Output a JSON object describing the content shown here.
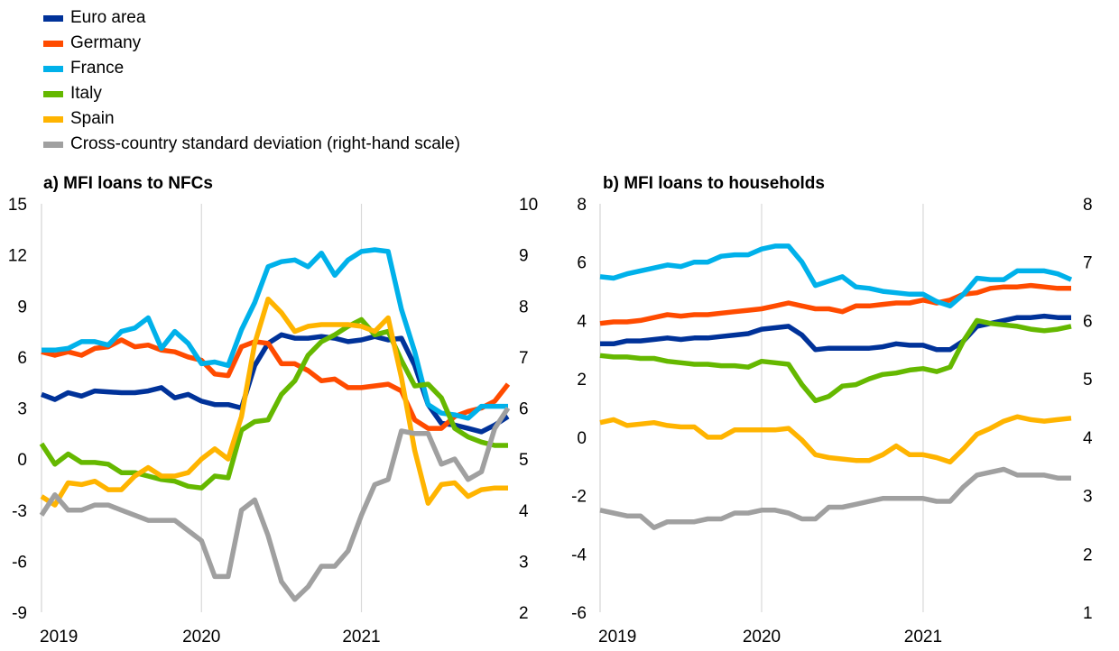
{
  "legend": [
    {
      "label": "Euro area",
      "color": "#003299"
    },
    {
      "label": "Germany",
      "color": "#FF4B00"
    },
    {
      "label": "France",
      "color": "#00B1EA"
    },
    {
      "label": "Italy",
      "color": "#65B800"
    },
    {
      "label": "Spain",
      "color": "#FFB400"
    },
    {
      "label": "Cross-country standard deviation (right-hand scale)",
      "color": "#A0A0A0"
    }
  ],
  "chart_data": [
    {
      "type": "line",
      "title": "a) MFI loans to NFCs",
      "x_start": "2019-01",
      "x_ticks": [
        "2019",
        "2020",
        "2021"
      ],
      "ylim": [
        -9,
        15
      ],
      "y_ticks": [
        15,
        12,
        9,
        6,
        3,
        0,
        -3,
        -6,
        -9
      ],
      "y2lim": [
        2,
        10
      ],
      "y2_ticks": [
        10,
        9,
        8,
        7,
        6,
        5,
        4,
        3,
        2
      ],
      "grid": "vertical",
      "series": [
        {
          "name": "Euro area",
          "color": "#003299",
          "axis": "left",
          "values": [
            3.8,
            3.5,
            3.9,
            3.7,
            4.0,
            3.95,
            3.9,
            3.9,
            4.0,
            4.2,
            3.6,
            3.8,
            3.4,
            3.2,
            3.2,
            3.0,
            5.5,
            6.8,
            7.3,
            7.1,
            7.1,
            7.2,
            7.1,
            6.9,
            7.0,
            7.2,
            7.0,
            7.1,
            5.5,
            3.2,
            2.1,
            2.0,
            1.8,
            1.6,
            2.0,
            2.5
          ]
        },
        {
          "name": "Germany",
          "color": "#FF4B00",
          "axis": "left",
          "values": [
            6.3,
            6.1,
            6.3,
            6.1,
            6.5,
            6.6,
            7.0,
            6.6,
            6.7,
            6.4,
            6.3,
            6.0,
            5.8,
            5.0,
            4.9,
            6.6,
            6.9,
            6.8,
            5.6,
            5.6,
            5.2,
            4.6,
            4.7,
            4.2,
            4.2,
            4.3,
            4.4,
            4.0,
            2.3,
            1.8,
            1.8,
            2.5,
            2.8,
            3.0,
            3.4,
            4.4
          ]
        },
        {
          "name": "France",
          "color": "#00B1EA",
          "axis": "left",
          "values": [
            6.4,
            6.4,
            6.5,
            6.9,
            6.9,
            6.7,
            7.5,
            7.7,
            8.3,
            6.5,
            7.5,
            6.8,
            5.6,
            5.7,
            5.5,
            7.6,
            9.2,
            11.3,
            11.6,
            11.7,
            11.3,
            12.1,
            10.8,
            11.7,
            12.2,
            12.3,
            12.2,
            8.8,
            6.3,
            3.2,
            2.7,
            2.6,
            2.4,
            3.1,
            3.1,
            3.1
          ]
        },
        {
          "name": "Italy",
          "color": "#65B800",
          "axis": "left",
          "values": [
            0.9,
            -0.3,
            0.3,
            -0.2,
            -0.2,
            -0.3,
            -0.8,
            -0.8,
            -1.0,
            -1.2,
            -1.3,
            -1.6,
            -1.7,
            -1.0,
            -1.1,
            1.7,
            2.2,
            2.3,
            3.8,
            4.6,
            6.1,
            6.9,
            7.3,
            7.8,
            8.2,
            7.3,
            7.5,
            5.8,
            4.3,
            4.4,
            3.6,
            1.8,
            1.3,
            1.0,
            0.8,
            0.8
          ]
        },
        {
          "name": "Spain",
          "color": "#FFB400",
          "axis": "left",
          "values": [
            -2.2,
            -2.7,
            -1.4,
            -1.5,
            -1.3,
            -1.8,
            -1.8,
            -1.0,
            -0.5,
            -1.0,
            -1.0,
            -0.8,
            0.0,
            0.6,
            0.0,
            2.5,
            6.8,
            9.4,
            8.6,
            7.5,
            7.8,
            7.9,
            7.9,
            7.9,
            7.8,
            7.5,
            8.3,
            4.8,
            0.5,
            -2.6,
            -1.5,
            -1.4,
            -2.2,
            -1.8,
            -1.7,
            -1.7
          ]
        },
        {
          "name": "Cross-country standard deviation (right-hand scale)",
          "color": "#A0A0A0",
          "axis": "right",
          "values": [
            3.9,
            4.3,
            4.0,
            4.0,
            4.1,
            4.1,
            4.0,
            3.9,
            3.8,
            3.8,
            3.8,
            3.6,
            3.4,
            2.7,
            2.7,
            4.0,
            4.2,
            3.5,
            2.6,
            2.25,
            2.5,
            2.9,
            2.9,
            3.2,
            3.9,
            4.5,
            4.6,
            5.55,
            5.5,
            5.5,
            4.9,
            5.0,
            4.6,
            4.75,
            5.6,
            6.0
          ]
        }
      ]
    },
    {
      "type": "line",
      "title": "b) MFI loans to households",
      "x_start": "2019-01",
      "x_ticks": [
        "2019",
        "2020",
        "2021"
      ],
      "ylim": [
        -6,
        8
      ],
      "y_ticks": [
        8,
        6,
        4,
        2,
        0,
        -2,
        -4,
        -6
      ],
      "y2lim": [
        1,
        8
      ],
      "y2_ticks": [
        8,
        7,
        6,
        5,
        4,
        3,
        2,
        1
      ],
      "grid": "vertical",
      "series": [
        {
          "name": "Euro area",
          "color": "#003299",
          "axis": "left",
          "values": [
            3.2,
            3.2,
            3.3,
            3.3,
            3.35,
            3.4,
            3.35,
            3.4,
            3.4,
            3.45,
            3.5,
            3.55,
            3.7,
            3.75,
            3.8,
            3.5,
            3.0,
            3.05,
            3.05,
            3.05,
            3.05,
            3.1,
            3.2,
            3.15,
            3.15,
            3.0,
            3.0,
            3.3,
            3.8,
            3.9,
            4.0,
            4.1,
            4.1,
            4.15,
            4.1,
            4.1
          ]
        },
        {
          "name": "Germany",
          "color": "#FF4B00",
          "axis": "left",
          "values": [
            3.9,
            3.95,
            3.95,
            4.0,
            4.1,
            4.2,
            4.15,
            4.2,
            4.2,
            4.25,
            4.3,
            4.35,
            4.4,
            4.5,
            4.6,
            4.5,
            4.4,
            4.4,
            4.3,
            4.5,
            4.5,
            4.55,
            4.6,
            4.6,
            4.7,
            4.6,
            4.7,
            4.9,
            4.95,
            5.1,
            5.15,
            5.15,
            5.2,
            5.15,
            5.1,
            5.1
          ]
        },
        {
          "name": "France",
          "color": "#00B1EA",
          "axis": "left",
          "values": [
            5.5,
            5.45,
            5.6,
            5.7,
            5.8,
            5.9,
            5.85,
            6.0,
            6.0,
            6.2,
            6.25,
            6.25,
            6.45,
            6.55,
            6.55,
            6.0,
            5.2,
            5.35,
            5.5,
            5.15,
            5.1,
            5.0,
            4.95,
            4.9,
            4.9,
            4.65,
            4.5,
            4.9,
            5.45,
            5.4,
            5.4,
            5.7,
            5.7,
            5.7,
            5.6,
            5.4
          ]
        },
        {
          "name": "Italy",
          "color": "#65B800",
          "axis": "left",
          "values": [
            2.8,
            2.75,
            2.75,
            2.7,
            2.7,
            2.6,
            2.55,
            2.5,
            2.5,
            2.45,
            2.45,
            2.4,
            2.6,
            2.55,
            2.5,
            1.8,
            1.25,
            1.4,
            1.75,
            1.8,
            2.0,
            2.15,
            2.2,
            2.3,
            2.35,
            2.25,
            2.4,
            3.3,
            4.0,
            3.9,
            3.85,
            3.8,
            3.7,
            3.65,
            3.7,
            3.8
          ]
        },
        {
          "name": "Spain",
          "color": "#FFB400",
          "axis": "left",
          "values": [
            0.5,
            0.6,
            0.4,
            0.45,
            0.5,
            0.4,
            0.35,
            0.35,
            0.0,
            0.0,
            0.25,
            0.25,
            0.25,
            0.25,
            0.3,
            -0.1,
            -0.6,
            -0.7,
            -0.75,
            -0.8,
            -0.8,
            -0.6,
            -0.3,
            -0.6,
            -0.6,
            -0.7,
            -0.85,
            -0.4,
            0.1,
            0.3,
            0.55,
            0.7,
            0.6,
            0.55,
            0.6,
            0.65
          ]
        },
        {
          "name": "Cross-country standard deviation (right-hand scale)",
          "color": "#A0A0A0",
          "axis": "right",
          "values": [
            2.75,
            2.7,
            2.65,
            2.65,
            2.45,
            2.55,
            2.55,
            2.55,
            2.6,
            2.6,
            2.7,
            2.7,
            2.75,
            2.75,
            2.7,
            2.6,
            2.6,
            2.8,
            2.8,
            2.85,
            2.9,
            2.95,
            2.95,
            2.95,
            2.95,
            2.9,
            2.9,
            3.15,
            3.35,
            3.4,
            3.45,
            3.35,
            3.35,
            3.35,
            3.3,
            3.3
          ]
        }
      ]
    }
  ]
}
